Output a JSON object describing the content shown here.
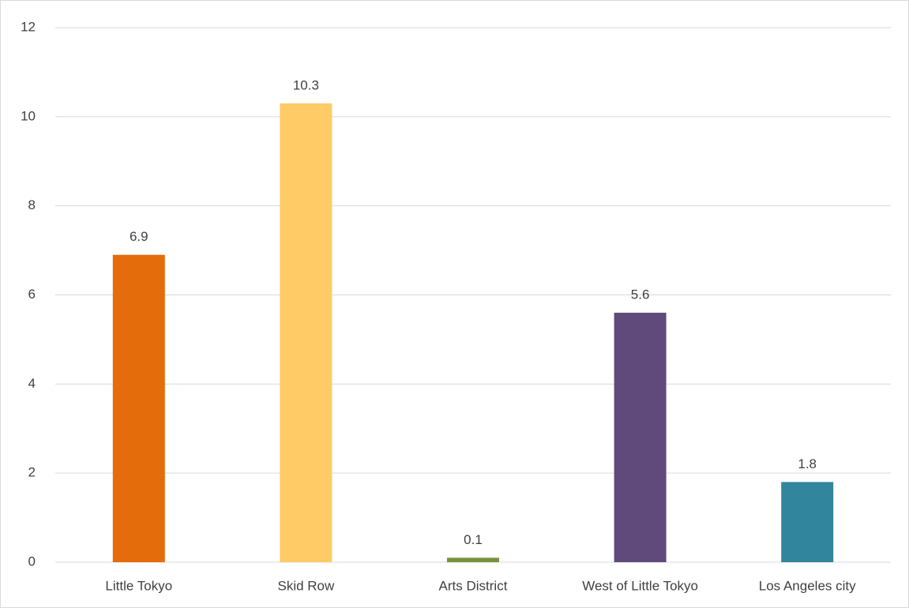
{
  "chart_data": {
    "type": "bar",
    "categories": [
      "Little Tokyo",
      "Skid Row",
      "Arts District",
      "West of Little Tokyo",
      "Los Angeles city"
    ],
    "values": [
      6.9,
      10.3,
      0.1,
      5.6,
      1.8
    ],
    "colors": [
      "#e46c0a",
      "#fecb66",
      "#76923c",
      "#604a7b",
      "#31859c"
    ],
    "ylim": [
      0,
      12
    ],
    "yticks": [
      0,
      2,
      4,
      6,
      8,
      10,
      12
    ],
    "grid": true
  }
}
